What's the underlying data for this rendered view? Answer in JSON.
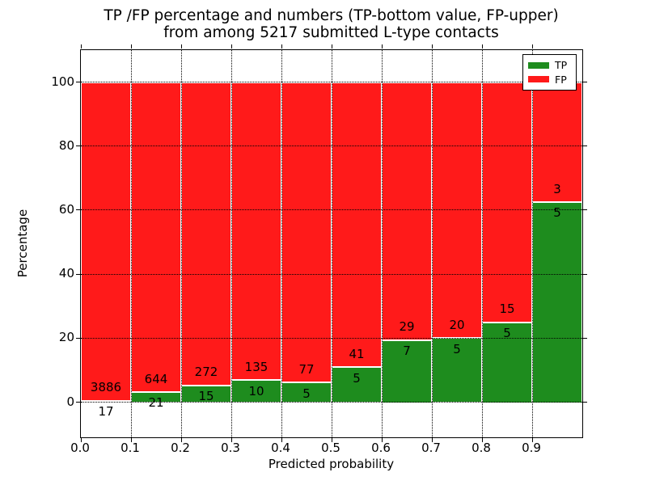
{
  "chart_data": {
    "type": "bar",
    "subtype": "stacked-percentage",
    "title_lines": [
      "TP /FP percentage and numbers (TP-bottom value, FP-upper)",
      "from among 5217 submitted L-type contacts"
    ],
    "xlabel": "Predicted probability",
    "ylabel": "Percentage",
    "x_bin_starts": [
      0.0,
      0.1,
      0.2,
      0.3,
      0.4,
      0.5,
      0.6,
      0.7,
      0.8,
      0.9
    ],
    "bin_width": 0.1,
    "series": [
      {
        "name": "TP",
        "color": "#1e8c1e",
        "counts": [
          17,
          21,
          15,
          10,
          5,
          5,
          7,
          5,
          5,
          5
        ]
      },
      {
        "name": "FP",
        "color": "#ff1a1a",
        "counts": [
          3886,
          644,
          272,
          135,
          77,
          41,
          29,
          20,
          15,
          3
        ]
      }
    ],
    "tp_percent": [
      0.44,
      3.16,
      5.23,
      6.9,
      6.1,
      10.87,
      19.44,
      20.0,
      25.0,
      62.5
    ],
    "total_contacts": 5217,
    "xtick_labels": [
      "0.0",
      "0.1",
      "0.2",
      "0.3",
      "0.4",
      "0.5",
      "0.6",
      "0.7",
      "0.8",
      "0.9"
    ],
    "ytick_labels": [
      "0",
      "20",
      "40",
      "60",
      "80",
      "100"
    ],
    "yticks": [
      0,
      20,
      40,
      60,
      80,
      100
    ],
    "xlim": [
      0.0,
      1.0
    ],
    "ylim": [
      -11,
      110
    ],
    "grid": {
      "on": true,
      "style": "dotted",
      "color": "#000000"
    },
    "legend": {
      "position": "upper-right",
      "entries": [
        {
          "label": "TP",
          "color": "#1e8c1e"
        },
        {
          "label": "FP",
          "color": "#ff1a1a"
        }
      ]
    }
  }
}
